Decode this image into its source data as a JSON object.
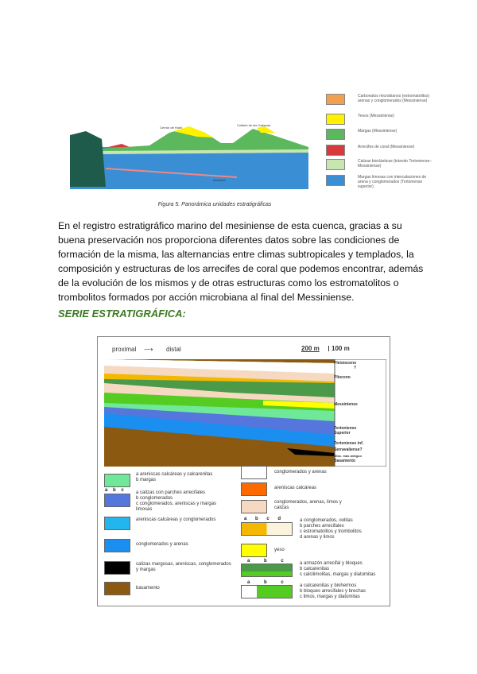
{
  "figure1": {
    "labels": {
      "left_peak": "Cerrón de Huelí",
      "right_peak": "Collado de las Cabezas",
      "bottom": "Acebedo"
    },
    "legend": [
      {
        "color": "#f0a050",
        "text": "Carbonatos microbianos (estromatolitos) arenas y conglomerados (Messiniense)"
      },
      {
        "color": "#fff200",
        "text": "Yesos (Messiniense)"
      },
      {
        "color": "#5cb85c",
        "text": "Margas (Messiniense)"
      },
      {
        "color": "#d63a3a",
        "text": "Arrecifes de coral (Messiniense)"
      },
      {
        "color": "#c8e6b0",
        "text": "Calizas bioclásticas (tránsito Tortoniense–Messiniense)"
      },
      {
        "color": "#3a8fd4",
        "text": "Margas limosas con intercalaciones de arena y conglomerados (Tortoniense superior)"
      }
    ],
    "caption": "Figura 5. Panorámica unidades estratigráficas"
  },
  "paragraph": "En el registro estratigráfico marino del mesiniense de esta cuenca, gracias a su buena preservación nos proporciona diferentes datos sobre las condiciones de formación de la misma, las alternancias entre climas subtropicales y templados, la composición y estructuras de los arrecifes de coral que podemos encontrar, además de la evolución de los mismos y de otras estructuras como los estromatolitos o trombolitos formados por acción microbiana al final del Messiniense.",
  "heading": "SERIE ESTRATIGRÁFICA:",
  "figure2": {
    "proximal": "proximal",
    "distal": "distal",
    "scale_h": "200 m",
    "scale_v": "100 m",
    "ages": [
      "Pleistoceno",
      "?",
      "Plioceno",
      "Messiniense",
      "Tortoniense Superior",
      "Tortoniense inf.",
      "Serravaliense?",
      "Mioc. más antiguo",
      "Basamento"
    ],
    "legend_left": [
      {
        "color": "#6fe89a",
        "marks": "a b",
        "text": "a  areniscas calcáreas y calcarenitas\nb  margas"
      },
      {
        "color": "#5577dd",
        "marks": "a b c",
        "text": "a  calizas con parches arrecifales\nb  conglomerados\nc  conglomerados, areniscas y margas limosas"
      },
      {
        "color": "#22b5ee",
        "marks": "",
        "text": "areniscas calcáreas y conglomerados"
      },
      {
        "color": "#1a8ff0",
        "marks": "",
        "text": "conglomerados y arenas"
      },
      {
        "color": "#000000",
        "marks": "",
        "text": "calizas margosas, areniscas, conglomerados y margas"
      },
      {
        "color": "#8b5a10",
        "marks": "",
        "text": "basamento"
      }
    ],
    "legend_right": [
      {
        "color": "#ffffff",
        "marks": "",
        "text": "conglomerados y arenas"
      },
      {
        "color": "#ff6a00",
        "marks": "",
        "text": "areniscas calcáreas"
      },
      {
        "color": "#f5d9c0",
        "marks": "",
        "text": "conglomerados, arenas, limos y calizas"
      },
      {
        "color": "#f5b800",
        "marks": "a b c d",
        "text": "a  conglomerados, oolitas\nb  parches arrecifales\nc  estromatolitos y trombolitos\nd  arenas y limos"
      },
      {
        "color": "#ffff00",
        "marks": "^ ^",
        "text": "yeso"
      },
      {
        "color": "#4a9a4a",
        "marks": "a b c",
        "text": "a  armazón arrecifal y bloques\nb  calcarenitas\nc  calcilimolitas, margas y diatomitas"
      },
      {
        "color": "#55cc22",
        "marks": "a b c",
        "text": "a  calcarenitas y biohermos\nb  bloques arrecifales y brechas\nc  limos, margas y diatomitas"
      }
    ]
  }
}
